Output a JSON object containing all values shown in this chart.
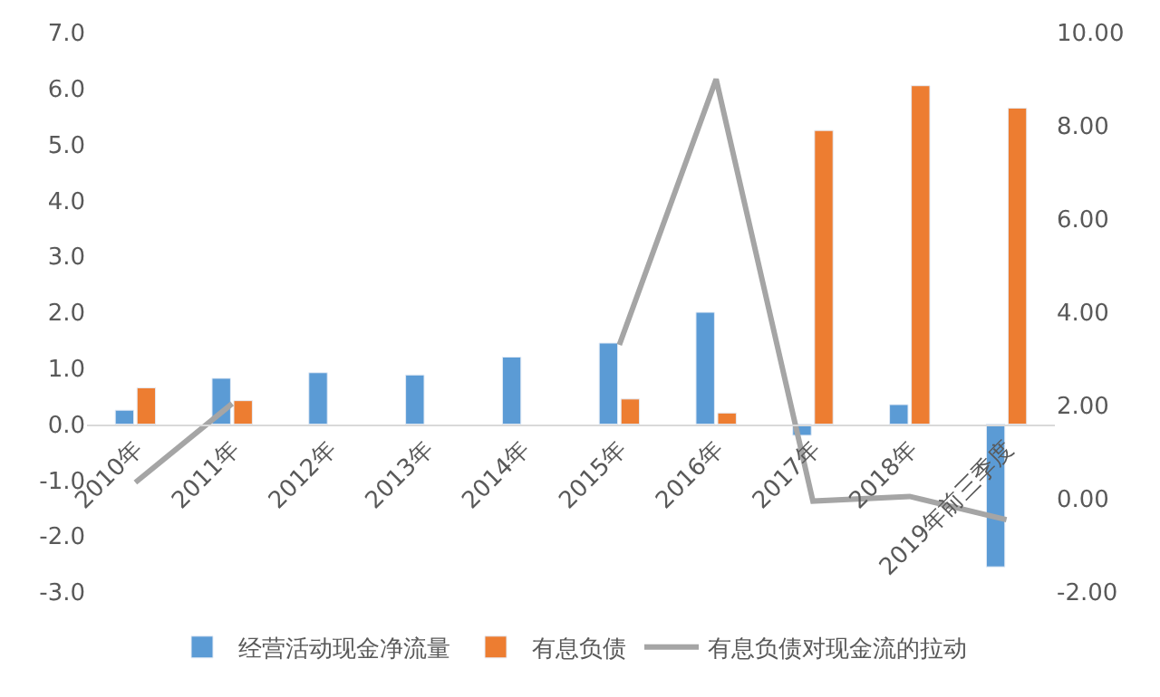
{
  "chart_data": {
    "type": "bar",
    "categories": [
      "2010年",
      "2011年",
      "2012年",
      "2013年",
      "2014年",
      "2015年",
      "2016年",
      "2017年",
      "2018年",
      "2019年前三季度"
    ],
    "series": [
      {
        "name": "经营活动现金净流量",
        "color": "#5b9bd5",
        "values": [
          0.25,
          0.82,
          0.92,
          0.88,
          1.2,
          1.45,
          2.0,
          -0.2,
          0.35,
          -2.55
        ]
      },
      {
        "name": "有息负债",
        "color": "#ed7d31",
        "values": [
          0.65,
          0.42,
          null,
          null,
          null,
          0.45,
          0.2,
          5.25,
          6.05,
          5.65
        ]
      },
      {
        "name": "有息负债对现金流的拉动",
        "color": "#a5a5a5",
        "type": "line",
        "axis": "y2",
        "marker": "none",
        "line_style": "solid",
        "values": [
          0.35,
          2.04,
          null,
          null,
          null,
          3.3,
          9.0,
          -0.05,
          0.05,
          -0.45
        ]
      }
    ],
    "ylim": [
      -3,
      7
    ],
    "yticks": [
      {
        "value": -3,
        "label": "-3.0"
      },
      {
        "value": -2,
        "label": "-2.0"
      },
      {
        "value": -1,
        "label": "-1.0"
      },
      {
        "value": 0,
        "label": "0.0"
      },
      {
        "value": 1,
        "label": "1.0"
      },
      {
        "value": 2,
        "label": "2.0"
      },
      {
        "value": 3,
        "label": "3.0"
      },
      {
        "value": 4,
        "label": "4.0"
      },
      {
        "value": 5,
        "label": "5.0"
      },
      {
        "value": 6,
        "label": "6.0"
      },
      {
        "value": 7,
        "label": "7.0"
      }
    ],
    "y2lim": [
      -2,
      10
    ],
    "y2ticks": [
      {
        "value": -2,
        "label": "-2.00"
      },
      {
        "value": 0,
        "label": "0.00"
      },
      {
        "value": 2,
        "label": "2.00"
      },
      {
        "value": 4,
        "label": "4.00"
      },
      {
        "value": 6,
        "label": "6.00"
      },
      {
        "value": 8,
        "label": "8.00"
      },
      {
        "value": 10,
        "label": "10.00"
      }
    ],
    "legend": "bottom"
  }
}
